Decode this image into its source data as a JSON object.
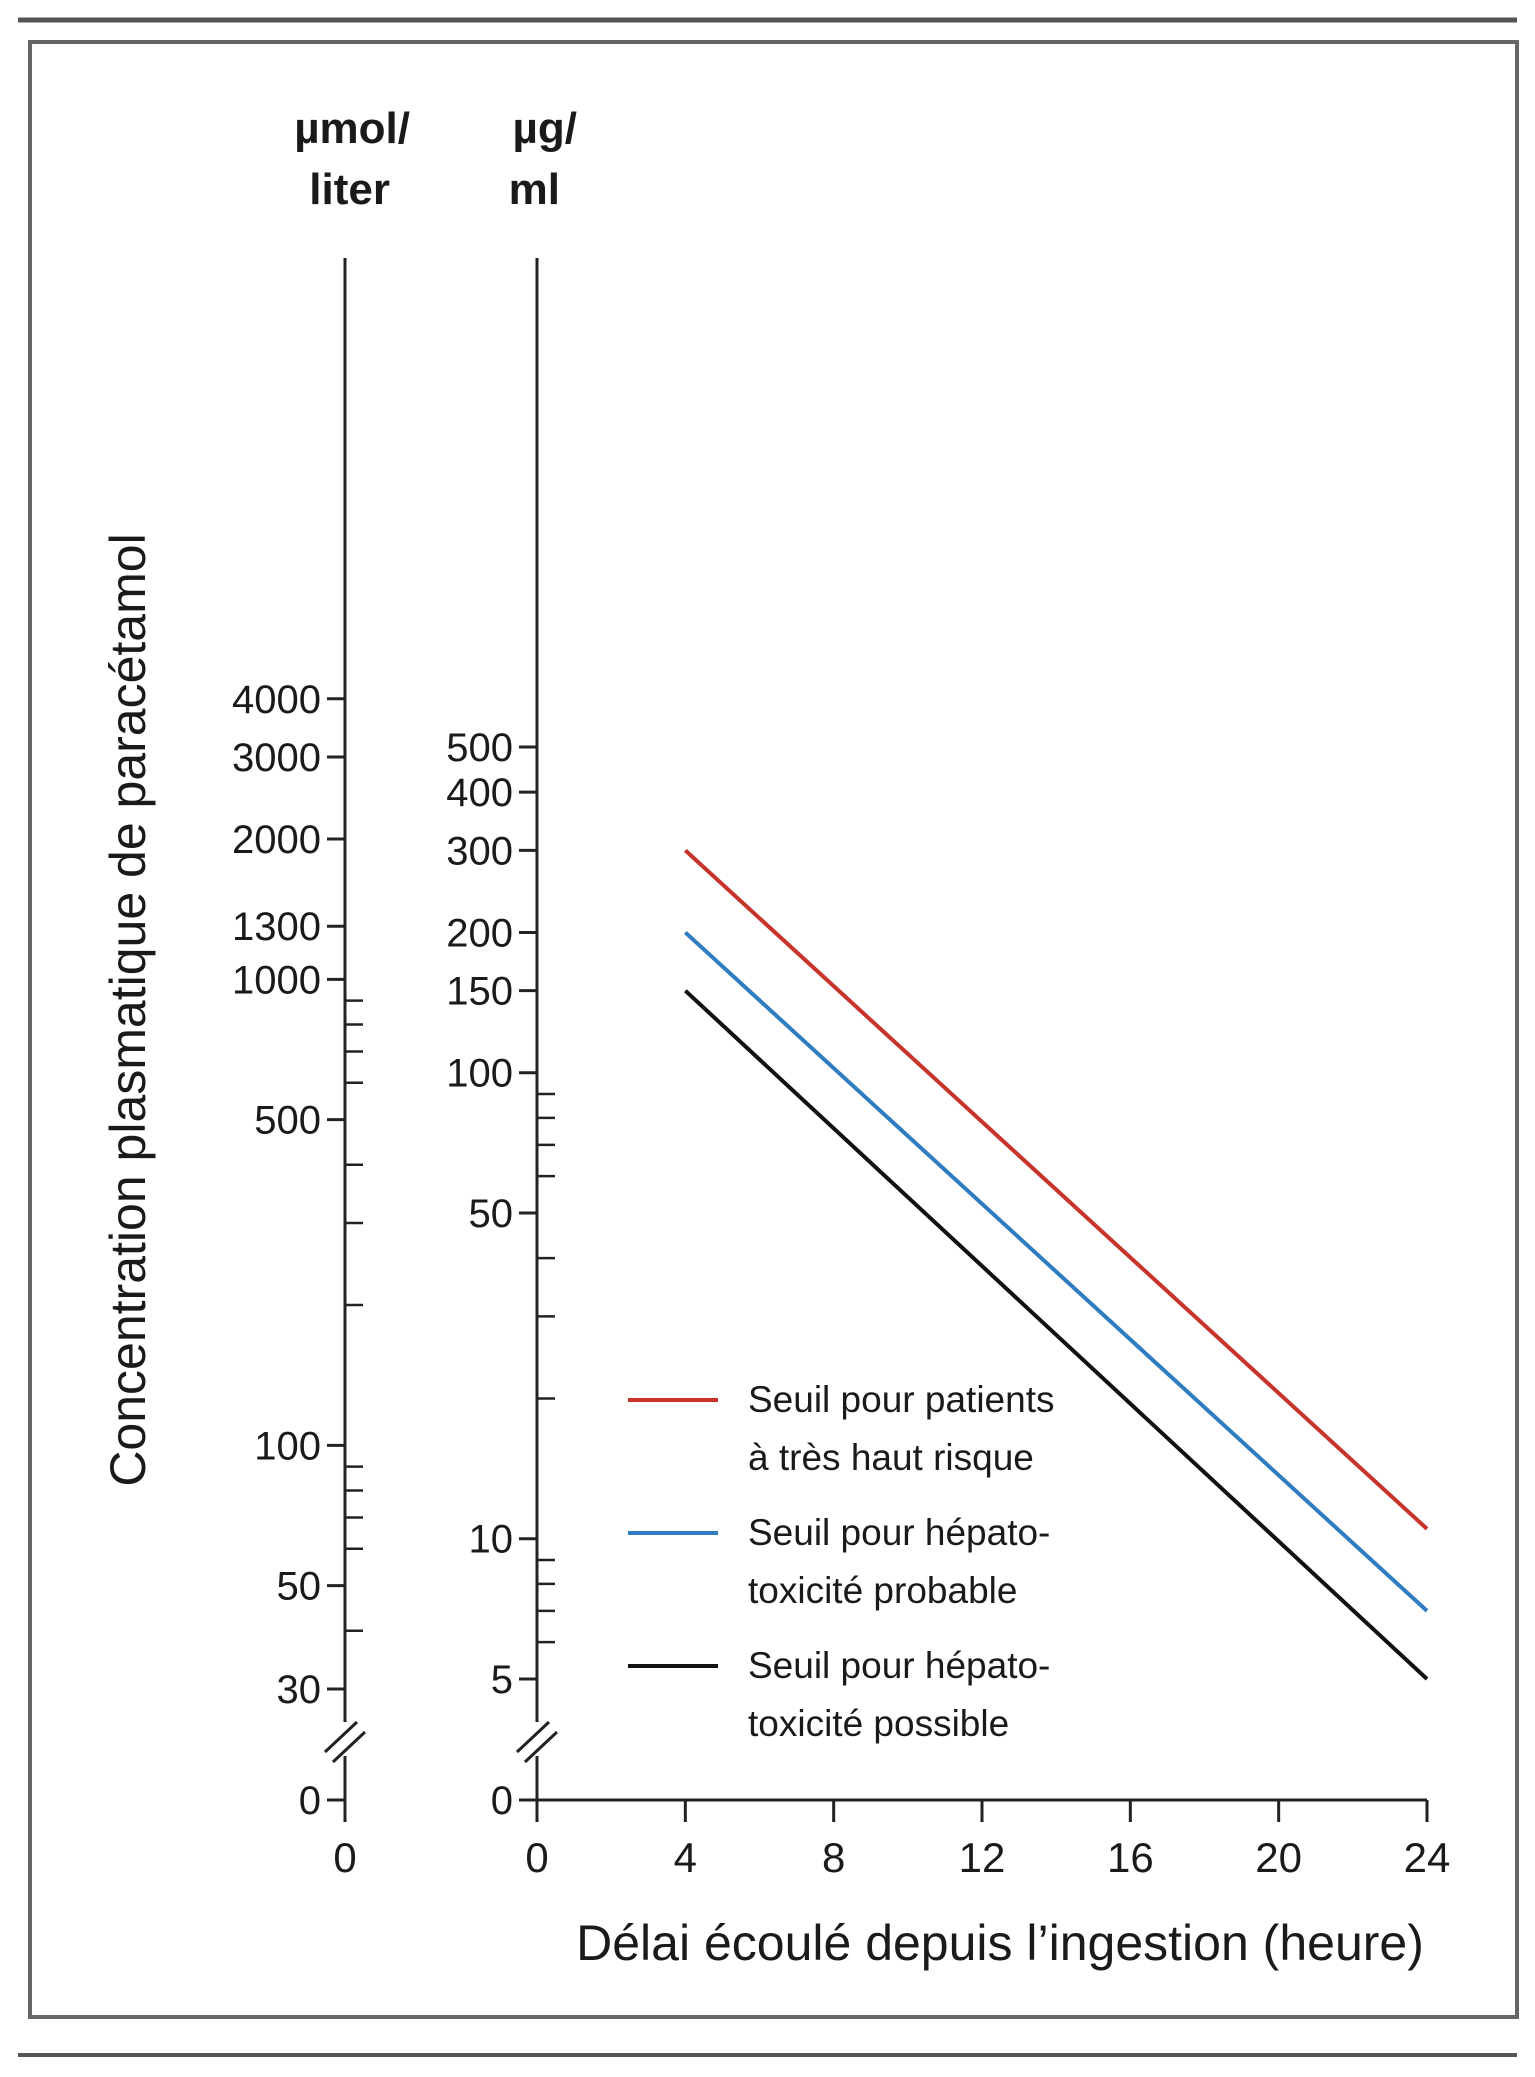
{
  "chart_data": {
    "type": "line",
    "title": "",
    "ylabel": "Concentration plasmatique de paracétamol",
    "xlabel": "Délai écoulé depuis l’ingestion (heure)",
    "y_scale": "log",
    "y_axis_break": true,
    "grid": false,
    "legend_position": "bottom-right",
    "xlim": [
      0,
      24
    ],
    "x_ticks": [
      "0",
      "4",
      "8",
      "12",
      "16",
      "20",
      "24"
    ],
    "x_left_axis_tick": "0",
    "y_left_unit": [
      "µmol/",
      "liter"
    ],
    "y_right_unit": [
      "µg/",
      "ml"
    ],
    "y_left_ticks": [
      {
        "label": "4000",
        "value": 4000
      },
      {
        "label": "3000",
        "value": 3000
      },
      {
        "label": "2000",
        "value": 2000
      },
      {
        "label": "1300",
        "value": 1300
      },
      {
        "label": "1000",
        "value": 1000
      },
      {
        "label": "500",
        "value": 500
      },
      {
        "label": "100",
        "value": 100
      },
      {
        "label": "50",
        "value": 50
      },
      {
        "label": "30",
        "value": 30
      },
      {
        "label": "0",
        "value": 0
      }
    ],
    "y_right_ticks": [
      {
        "label": "500",
        "value": 500
      },
      {
        "label": "400",
        "value": 400
      },
      {
        "label": "300",
        "value": 300
      },
      {
        "label": "200",
        "value": 200
      },
      {
        "label": "150",
        "value": 150
      },
      {
        "label": "100",
        "value": 100
      },
      {
        "label": "50",
        "value": 50
      },
      {
        "label": "10",
        "value": 10
      },
      {
        "label": "5",
        "value": 5
      },
      {
        "label": "0",
        "value": 0
      }
    ],
    "series": [
      {
        "name": "Seuil pour patients à très haut risque",
        "legend_lines": [
          "Seuil pour patients",
          "à très haut risque"
        ],
        "color": "#c8332b",
        "x": [
          4,
          24
        ],
        "y": [
          300,
          10.5
        ]
      },
      {
        "name": "Seuil pour hépatotoxicité probable",
        "legend_lines": [
          "Seuil pour hépato-",
          "toxicité probable"
        ],
        "color": "#2f7cc0",
        "x": [
          4,
          24
        ],
        "y": [
          200,
          7
        ]
      },
      {
        "name": "Seuil pour hépatotoxicité possible",
        "legend_lines": [
          "Seuil pour hépato-",
          "toxicité possible"
        ],
        "color": "#111111",
        "x": [
          4,
          24
        ],
        "y": [
          150,
          5
        ]
      }
    ]
  }
}
